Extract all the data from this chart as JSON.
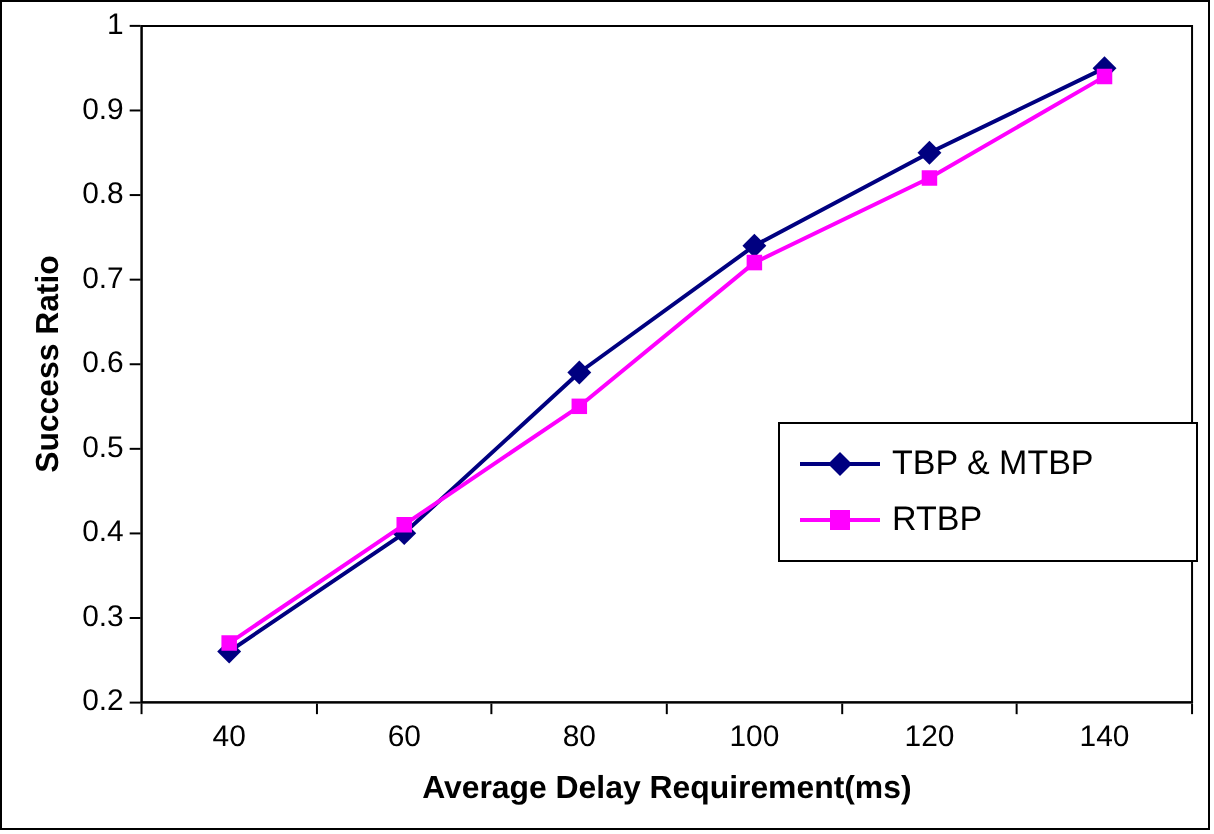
{
  "chart_data": {
    "type": "line",
    "xlabel": "Average Delay Requirement(ms)",
    "ylabel": "Success Ratio",
    "categories": [
      "40",
      "60",
      "80",
      "100",
      "120",
      "140"
    ],
    "series": [
      {
        "name": "TBP & MTBP",
        "color": "#000080",
        "marker": "diamond",
        "values": [
          0.26,
          0.4,
          0.59,
          0.74,
          0.85,
          0.95
        ]
      },
      {
        "name": "RTBP",
        "color": "#ff00ff",
        "marker": "square",
        "values": [
          0.27,
          0.41,
          0.55,
          0.72,
          0.82,
          0.94
        ]
      }
    ],
    "ylim": [
      0.2,
      1
    ],
    "yticks": [
      0.2,
      0.3,
      0.4,
      0.5,
      0.6,
      0.7,
      0.8,
      0.9,
      1
    ],
    "legend": "right",
    "line_style": "solid"
  }
}
